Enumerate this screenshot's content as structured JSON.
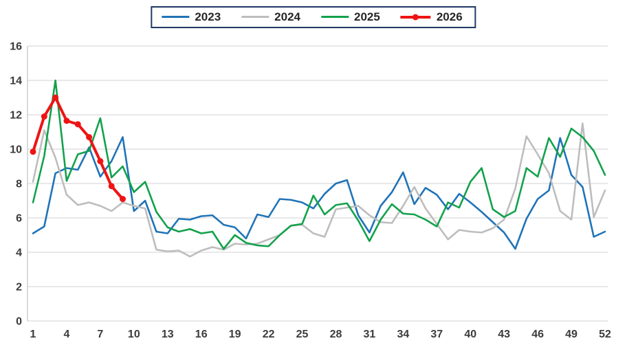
{
  "chart_data": {
    "type": "line",
    "title": "",
    "xlabel": "",
    "ylabel": "",
    "x_min": 1,
    "x_max": 52,
    "ylim": [
      0,
      16
    ],
    "x_ticks": [
      "1",
      "4",
      "7",
      "10",
      "13",
      "16",
      "19",
      "22",
      "25",
      "28",
      "31",
      "34",
      "37",
      "40",
      "43",
      "46",
      "49",
      "52"
    ],
    "y_ticks": [
      "0",
      "2",
      "4",
      "6",
      "8",
      "10",
      "12",
      "14",
      "16"
    ],
    "grid": "horizontal",
    "legend_position": "top-center",
    "colors": {
      "gridline": "#d9d9d9",
      "axis_line": "#c6c6c6",
      "tick_text": "#3b3b3b",
      "legend_border": "#1f3864",
      "legend_text": "#262626"
    },
    "series": [
      {
        "name": "2023",
        "color": "#1f73b8",
        "width": 2.6,
        "marker": false,
        "values": [
          5.1,
          5.5,
          8.6,
          8.9,
          8.8,
          10.1,
          8.4,
          9.3,
          10.7,
          6.4,
          7.0,
          5.2,
          5.1,
          5.95,
          5.9,
          6.1,
          6.15,
          5.6,
          5.45,
          4.8,
          6.2,
          6.05,
          7.1,
          7.05,
          6.9,
          6.55,
          7.4,
          8.0,
          8.2,
          6.15,
          5.15,
          6.7,
          7.5,
          8.65,
          6.8,
          7.75,
          7.35,
          6.5,
          7.4,
          6.9,
          6.35,
          5.75,
          5.15,
          4.2,
          5.95,
          7.1,
          7.6,
          10.65,
          8.5,
          7.8,
          4.9,
          5.2
        ]
      },
      {
        "name": "2024",
        "color": "#bdbdbd",
        "width": 2.6,
        "marker": false,
        "values": [
          8.1,
          11.1,
          9.5,
          7.35,
          6.75,
          6.9,
          6.7,
          6.4,
          6.9,
          6.7,
          6.55,
          4.15,
          4.05,
          4.1,
          3.75,
          4.1,
          4.3,
          4.15,
          4.5,
          4.45,
          4.5,
          4.75,
          5.0,
          5.55,
          5.6,
          5.1,
          4.9,
          6.5,
          6.6,
          6.7,
          6.15,
          5.75,
          5.7,
          6.7,
          7.8,
          6.55,
          5.65,
          4.75,
          5.3,
          5.2,
          5.15,
          5.4,
          5.9,
          7.7,
          10.75,
          9.7,
          8.6,
          6.4,
          5.9,
          11.5,
          6.05,
          7.6
        ]
      },
      {
        "name": "2025",
        "color": "#12a14b",
        "width": 2.6,
        "marker": false,
        "values": [
          6.9,
          9.6,
          14.0,
          8.15,
          9.7,
          9.9,
          11.8,
          8.35,
          9.0,
          7.5,
          8.1,
          6.35,
          5.45,
          5.2,
          5.35,
          5.1,
          5.2,
          4.2,
          5.0,
          4.55,
          4.4,
          4.35,
          5.0,
          5.55,
          5.65,
          7.3,
          6.2,
          6.75,
          6.85,
          5.85,
          4.65,
          5.9,
          6.8,
          6.25,
          6.2,
          5.9,
          5.5,
          6.9,
          6.6,
          8.1,
          8.9,
          6.5,
          6.05,
          6.4,
          8.9,
          8.4,
          10.65,
          9.55,
          11.2,
          10.7,
          9.9,
          8.5
        ]
      },
      {
        "name": "2026",
        "color": "#ee1414",
        "width": 4,
        "marker": true,
        "marker_radius": 4.5,
        "values": [
          9.85,
          11.9,
          13.0,
          11.65,
          11.45,
          10.7,
          9.3,
          7.85,
          7.1,
          null,
          null,
          null,
          null,
          null,
          null,
          null,
          null,
          null,
          null,
          null,
          null,
          null,
          null,
          null,
          null,
          null,
          null,
          null,
          null,
          null,
          null,
          null,
          null,
          null,
          null,
          null,
          null,
          null,
          null,
          null,
          null,
          null,
          null,
          null,
          null,
          null,
          null,
          null,
          null,
          null,
          null,
          null
        ]
      }
    ]
  }
}
